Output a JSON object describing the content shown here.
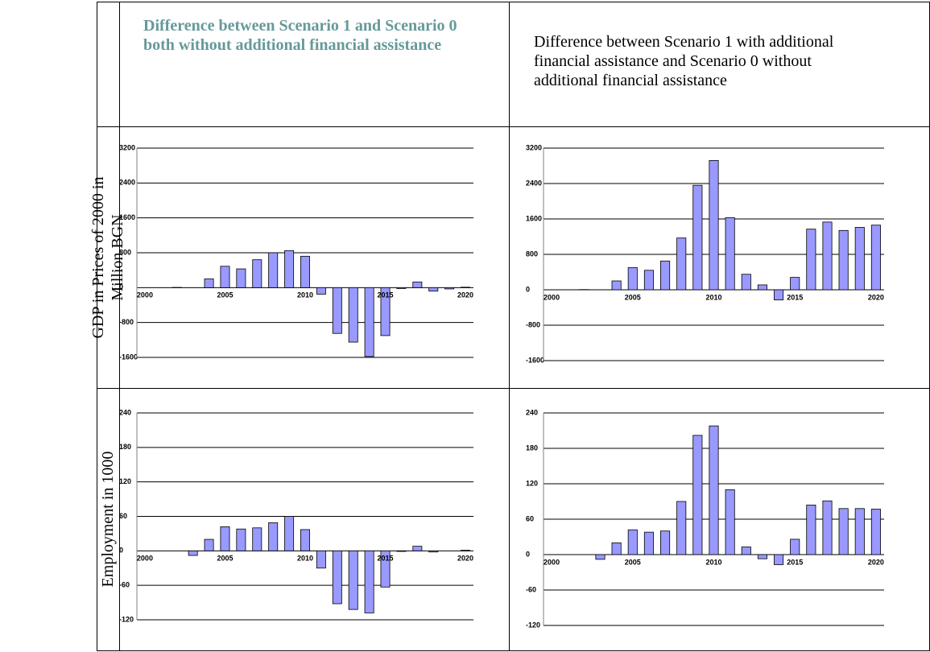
{
  "table": {
    "header": [
      "Difference between Scenario 1 and Scenario 0 both without additional financial assistance",
      "Difference between Scenario 1 with additional financial assistance and Scenario 0 without additional financial assistance"
    ],
    "row_labels": [
      "GDP in Prices of 2000 in Million BGN",
      "Employment in 1000"
    ]
  },
  "chart_data": [
    {
      "type": "bar",
      "color": "#9999ff",
      "grid": true,
      "categories": [
        "2000",
        null,
        null,
        null,
        null,
        "2005",
        null,
        null,
        null,
        null,
        "2010",
        null,
        null,
        null,
        null,
        "2015",
        null,
        null,
        null,
        null,
        "2020"
      ],
      "values": [
        0,
        0,
        5,
        0,
        200,
        490,
        430,
        640,
        800,
        850,
        720,
        -150,
        -1050,
        -1250,
        -1580,
        -1100,
        -20,
        130,
        -80,
        -30,
        10
      ],
      "ylim": [
        -1600,
        3200
      ],
      "yticks": [
        -1600,
        -800,
        0,
        800,
        1600,
        2400,
        3200
      ]
    },
    {
      "type": "bar",
      "color": "#9999ff",
      "grid": true,
      "categories": [
        "2000",
        null,
        null,
        null,
        null,
        "2005",
        null,
        null,
        null,
        null,
        "2010",
        null,
        null,
        null,
        null,
        "2015",
        null,
        null,
        null,
        null,
        "2020"
      ],
      "values": [
        0,
        0,
        5,
        0,
        200,
        500,
        440,
        650,
        1170,
        2360,
        2920,
        1630,
        350,
        110,
        -230,
        280,
        1370,
        1530,
        1340,
        1410,
        1460
      ],
      "ylim": [
        -1600,
        3200
      ],
      "yticks": [
        -1600,
        -800,
        0,
        800,
        1600,
        2400,
        3200
      ]
    },
    {
      "type": "bar",
      "color": "#9999ff",
      "grid": true,
      "categories": [
        "2000",
        null,
        null,
        null,
        null,
        "2005",
        null,
        null,
        null,
        null,
        "2010",
        null,
        null,
        null,
        null,
        "2015",
        null,
        null,
        null,
        null,
        "2020"
      ],
      "values": [
        0,
        0,
        0,
        -8,
        20,
        42,
        38,
        40,
        49,
        60,
        37,
        -30,
        -92,
        -102,
        -108,
        -63,
        -1,
        8,
        -2,
        0,
        1
      ],
      "ylim": [
        -120,
        240
      ],
      "yticks": [
        -120,
        -60,
        0,
        60,
        120,
        180,
        240
      ]
    },
    {
      "type": "bar",
      "color": "#9999ff",
      "grid": true,
      "categories": [
        "2000",
        null,
        null,
        null,
        null,
        "2005",
        null,
        null,
        null,
        null,
        "2010",
        null,
        null,
        null,
        null,
        "2015",
        null,
        null,
        null,
        null,
        "2020"
      ],
      "values": [
        0,
        0,
        0,
        -8,
        20,
        42,
        38,
        40,
        90,
        202,
        218,
        110,
        13,
        -7,
        -17,
        26,
        84,
        91,
        78,
        78,
        77
      ],
      "ylim": [
        -120,
        240
      ],
      "yticks": [
        -120,
        -60,
        0,
        60,
        120,
        180,
        240
      ]
    }
  ]
}
